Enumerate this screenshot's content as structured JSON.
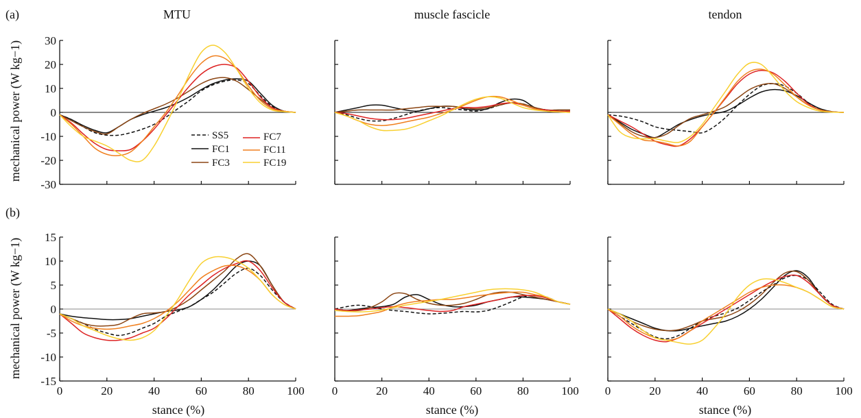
{
  "figure": {
    "panel_labels": [
      "(a)",
      "(b)"
    ],
    "column_titles": [
      "MTU",
      "muscle fascicle",
      "tendon"
    ],
    "ylabel": "mechanical power (W kg−1)",
    "xlabel": "stance (%)"
  },
  "legend": {
    "items": [
      {
        "name": "SS5",
        "color": "#111111",
        "dashed": true
      },
      {
        "name": "FC1",
        "color": "#111111",
        "dashed": false
      },
      {
        "name": "FC3",
        "color": "#8B4513",
        "dashed": false
      },
      {
        "name": "FC7",
        "color": "#DD2222",
        "dashed": false
      },
      {
        "name": "FC11",
        "color": "#F07F1E",
        "dashed": false
      },
      {
        "name": "FC19",
        "color": "#F8D030",
        "dashed": false
      }
    ]
  },
  "chart_data": [
    {
      "type": "line",
      "row": "a",
      "col": 0,
      "title": "MTU",
      "xlabel": "",
      "ylabel": "mechanical power (W kg−1)",
      "xlim": [
        0,
        100
      ],
      "ylim": [
        -30,
        30
      ],
      "yticks": [
        -30,
        -20,
        -10,
        0,
        10,
        20,
        30
      ],
      "xticks": [],
      "x": [
        0,
        5,
        10,
        15,
        20,
        25,
        30,
        35,
        40,
        45,
        50,
        55,
        60,
        65,
        70,
        75,
        80,
        85,
        90,
        95,
        100
      ],
      "series": [
        {
          "name": "SS5",
          "values": [
            -1,
            -3,
            -6,
            -8.5,
            -9.5,
            -9.5,
            -8.5,
            -7,
            -5,
            -2,
            1.5,
            5,
            9,
            11.5,
            13,
            13.5,
            12,
            7,
            2.5,
            0.5,
            0
          ]
        },
        {
          "name": "FC1",
          "values": [
            -1,
            -3,
            -5.5,
            -7.5,
            -8.5,
            -6,
            -3,
            -1,
            0.5,
            2,
            4,
            6.5,
            9.5,
            12,
            13.5,
            14,
            13,
            8,
            3,
            0.5,
            0
          ]
        },
        {
          "name": "FC3",
          "values": [
            -1,
            -3.5,
            -6,
            -8,
            -9,
            -6,
            -3,
            -0.5,
            1.5,
            3.5,
            6,
            9,
            12,
            14,
            14.5,
            13,
            9.5,
            5.5,
            2,
            0.5,
            0
          ]
        },
        {
          "name": "FC7",
          "values": [
            -1,
            -4.5,
            -9,
            -13,
            -15.5,
            -16,
            -15.5,
            -12,
            -7,
            -1,
            5,
            11,
            16,
            19,
            20,
            18.5,
            13,
            6.5,
            2,
            0.5,
            0
          ]
        },
        {
          "name": "FC11",
          "values": [
            -1,
            -5,
            -10,
            -15,
            -17.5,
            -18,
            -16.5,
            -12,
            -6,
            0,
            7,
            14.5,
            20.5,
            23.5,
            22.5,
            18,
            11,
            5,
            1.5,
            0.5,
            0
          ]
        },
        {
          "name": "FC19",
          "values": [
            -1,
            -6,
            -10,
            -12,
            -14,
            -17,
            -20,
            -20,
            -14,
            -5,
            5,
            16,
            25,
            28,
            25,
            18,
            10,
            4,
            1,
            0.3,
            0
          ]
        }
      ]
    },
    {
      "type": "line",
      "row": "a",
      "col": 1,
      "title": "muscle fascicle",
      "xlim": [
        0,
        100
      ],
      "ylim": [
        -30,
        30
      ],
      "yticks": [],
      "xticks": [],
      "x": [
        0,
        5,
        10,
        15,
        20,
        25,
        30,
        35,
        40,
        45,
        50,
        55,
        60,
        65,
        70,
        75,
        80,
        85,
        90,
        95,
        100
      ],
      "series": [
        {
          "name": "SS5",
          "values": [
            0,
            -1,
            -2.5,
            -3.5,
            -3.5,
            -2.5,
            -1,
            0.5,
            1.5,
            2,
            1.5,
            1,
            0.5,
            1.5,
            3,
            4,
            3.5,
            2,
            1,
            0.5,
            0.5
          ]
        },
        {
          "name": "FC1",
          "values": [
            0,
            1,
            2,
            3,
            3,
            2,
            1,
            0.5,
            1.5,
            2.5,
            2.5,
            1.5,
            1,
            1.5,
            4,
            5.5,
            5,
            2,
            1,
            1,
            1
          ]
        },
        {
          "name": "FC3",
          "values": [
            0,
            0.5,
            1,
            1,
            1,
            1,
            1.5,
            2,
            2.5,
            2.5,
            2.5,
            2,
            1.5,
            2,
            3,
            4,
            3.5,
            2,
            1,
            1,
            1
          ]
        },
        {
          "name": "FC7",
          "values": [
            0,
            -0.5,
            -1.5,
            -2.5,
            -3,
            -3,
            -2.5,
            -1.5,
            -0.5,
            0.5,
            1.5,
            2,
            2,
            2.5,
            3.5,
            4,
            3,
            1.5,
            1,
            0.5,
            0.5
          ]
        },
        {
          "name": "FC11",
          "values": [
            0,
            -1.5,
            -3.5,
            -5,
            -5.5,
            -5,
            -4,
            -3,
            -2,
            -0.5,
            1,
            3,
            5,
            6.5,
            6.5,
            5,
            3,
            1.5,
            0.5,
            0.2,
            0
          ]
        },
        {
          "name": "FC19",
          "values": [
            0,
            -1.5,
            -3.5,
            -6,
            -7.5,
            -7.5,
            -7,
            -5.5,
            -3.5,
            -1.5,
            1,
            3.5,
            5.5,
            6.5,
            6,
            4,
            2,
            1,
            0.5,
            0.2,
            0
          ]
        }
      ]
    },
    {
      "type": "line",
      "row": "a",
      "col": 2,
      "title": "tendon",
      "xlim": [
        0,
        100
      ],
      "ylim": [
        -30,
        30
      ],
      "yticks": [],
      "xticks": [],
      "x": [
        0,
        5,
        10,
        15,
        20,
        25,
        30,
        35,
        40,
        45,
        50,
        55,
        60,
        65,
        70,
        75,
        80,
        85,
        90,
        95,
        100
      ],
      "series": [
        {
          "name": "SS5",
          "values": [
            -1,
            -1.5,
            -2.5,
            -4,
            -6,
            -7,
            -7.5,
            -8,
            -8.5,
            -6,
            -2,
            3,
            7.5,
            11,
            12,
            11,
            8,
            4,
            1.5,
            0.3,
            0
          ]
        },
        {
          "name": "FC1",
          "values": [
            -1,
            -4,
            -7,
            -9,
            -10.5,
            -8,
            -5,
            -3,
            -1.5,
            -0.5,
            0.5,
            3,
            6,
            8.5,
            9.5,
            9,
            7,
            4,
            1.5,
            0.3,
            0
          ]
        },
        {
          "name": "FC3",
          "values": [
            -1,
            -4.5,
            -8,
            -10,
            -10.5,
            -9,
            -5.5,
            -2.5,
            -1,
            0.5,
            2.5,
            6,
            9.5,
            11.5,
            12,
            10,
            6.5,
            3,
            1,
            0.2,
            0
          ]
        },
        {
          "name": "FC7",
          "values": [
            -1,
            -3.5,
            -6,
            -9,
            -12,
            -13.5,
            -14,
            -11,
            -6,
            0,
            6,
            12,
            16,
            17.5,
            16.5,
            13,
            8,
            3.5,
            1,
            0.2,
            0
          ]
        },
        {
          "name": "FC11",
          "values": [
            -1,
            -5,
            -9,
            -11.5,
            -12,
            -13,
            -14,
            -12,
            -6,
            0,
            6.5,
            13,
            17,
            18,
            16,
            11.5,
            6.5,
            3,
            1,
            0.2,
            0
          ]
        },
        {
          "name": "FC19",
          "values": [
            -1,
            -8,
            -10.5,
            -11,
            -11,
            -12,
            -12.5,
            -10,
            -5,
            2,
            9,
            16,
            20.5,
            20,
            15,
            9,
            4.5,
            2,
            0.5,
            0.1,
            0
          ]
        }
      ]
    },
    {
      "type": "line",
      "row": "b",
      "col": 0,
      "title": "",
      "xlabel": "stance (%)",
      "ylabel": "mechanical power (W kg−1)",
      "xlim": [
        0,
        100
      ],
      "ylim": [
        -15,
        15
      ],
      "yticks": [
        -15,
        -10,
        -5,
        0,
        5,
        10,
        15
      ],
      "xticks": [
        0,
        20,
        40,
        60,
        80,
        100
      ],
      "x": [
        0,
        5,
        10,
        15,
        20,
        25,
        30,
        35,
        40,
        45,
        50,
        55,
        60,
        65,
        70,
        75,
        80,
        85,
        90,
        95,
        100
      ],
      "series": [
        {
          "name": "SS5",
          "values": [
            -1,
            -2,
            -3,
            -4.2,
            -5,
            -5.5,
            -5,
            -4,
            -3,
            -1.5,
            -0.5,
            0.5,
            2,
            3.5,
            5.5,
            7.5,
            8.5,
            7,
            4,
            1.5,
            0
          ]
        },
        {
          "name": "FC1",
          "values": [
            -1,
            -1.5,
            -1.8,
            -2,
            -2.2,
            -2.2,
            -2,
            -1.5,
            -1,
            -0.5,
            -0.2,
            0.5,
            2,
            4,
            6.5,
            9,
            10,
            9,
            5,
            1.5,
            0
          ]
        },
        {
          "name": "FC3",
          "values": [
            -1,
            -2,
            -3,
            -3.5,
            -3.5,
            -3.2,
            -2,
            -1,
            -0.8,
            -0.5,
            0.5,
            2,
            4,
            6,
            8,
            10.5,
            11.5,
            9,
            5,
            1.5,
            0
          ]
        },
        {
          "name": "FC7",
          "values": [
            -1,
            -3,
            -5,
            -6,
            -6.5,
            -6.5,
            -6,
            -5,
            -4,
            -2,
            0.5,
            3,
            5,
            7,
            8.5,
            9.5,
            10,
            8,
            4.5,
            1.5,
            0
          ]
        },
        {
          "name": "FC11",
          "values": [
            -1,
            -2.5,
            -3.5,
            -4,
            -4.2,
            -4,
            -3.5,
            -3,
            -2,
            -0.5,
            1.5,
            4,
            6.5,
            8,
            9,
            9,
            8,
            6,
            3,
            1,
            0
          ]
        },
        {
          "name": "FC19",
          "values": [
            -1,
            -2,
            -3.5,
            -4.5,
            -5.5,
            -6.2,
            -6.5,
            -6,
            -4.5,
            -1.5,
            2,
            6,
            9.5,
            10.8,
            10.8,
            10,
            8.5,
            6,
            3,
            1,
            0
          ]
        }
      ]
    },
    {
      "type": "line",
      "row": "b",
      "col": 1,
      "title": "",
      "xlabel": "stance (%)",
      "xlim": [
        0,
        100
      ],
      "ylim": [
        -15,
        15
      ],
      "yticks": [],
      "xticks": [
        0,
        20,
        40,
        60,
        80,
        100
      ],
      "x": [
        0,
        5,
        10,
        15,
        20,
        25,
        30,
        35,
        40,
        45,
        50,
        55,
        60,
        65,
        70,
        75,
        80,
        85,
        90,
        95,
        100
      ],
      "series": [
        {
          "name": "SS5",
          "values": [
            0,
            0.5,
            0.8,
            0.5,
            0,
            -0.3,
            -0.5,
            -0.8,
            -1,
            -0.9,
            -0.7,
            -0.5,
            -0.6,
            -0.3,
            0.5,
            1.5,
            2.5,
            2.8,
            2.5,
            1.5,
            1
          ]
        },
        {
          "name": "FC1",
          "values": [
            0,
            -0.3,
            0,
            0.3,
            0.5,
            1,
            2.5,
            3,
            2,
            1,
            0.5,
            0.5,
            0.8,
            1.5,
            2,
            2.5,
            2.5,
            2.3,
            2,
            1.5,
            1
          ]
        },
        {
          "name": "FC3",
          "values": [
            0,
            -0.3,
            -0.3,
            0.3,
            1.5,
            3.2,
            3.2,
            2,
            1.2,
            0.8,
            0.8,
            1.2,
            2,
            3,
            3.5,
            3.5,
            3,
            2.5,
            2,
            1.5,
            1
          ]
        },
        {
          "name": "FC7",
          "values": [
            0,
            -0.3,
            -0.2,
            0,
            0.3,
            0.5,
            0.3,
            0,
            -0.3,
            -0.5,
            -0.3,
            0.5,
            1,
            1.5,
            2,
            2.5,
            2.8,
            2.8,
            2.3,
            1.5,
            1
          ]
        },
        {
          "name": "FC11",
          "values": [
            -1.5,
            -1.5,
            -1.4,
            -1,
            -0.5,
            0.5,
            1.2,
            1.6,
            1.8,
            2,
            2,
            2.3,
            2.7,
            3,
            3.3,
            3.5,
            3.5,
            3,
            2.5,
            1.5,
            1
          ]
        },
        {
          "name": "FC19",
          "values": [
            -0.3,
            -0.5,
            -0.6,
            -0.5,
            -0.2,
            0.3,
            0.8,
            1.2,
            1.6,
            2,
            2.5,
            3,
            3.5,
            4,
            4.2,
            4.2,
            4,
            3.5,
            2.5,
            1.5,
            1
          ]
        }
      ]
    },
    {
      "type": "line",
      "row": "b",
      "col": 2,
      "title": "",
      "xlabel": "stance (%)",
      "xlim": [
        0,
        100
      ],
      "ylim": [
        -15,
        15
      ],
      "yticks": [],
      "xticks": [
        0,
        20,
        40,
        60,
        80,
        100
      ],
      "x": [
        0,
        5,
        10,
        15,
        20,
        25,
        30,
        35,
        40,
        45,
        50,
        55,
        60,
        65,
        70,
        75,
        80,
        85,
        90,
        95,
        100
      ],
      "series": [
        {
          "name": "SS5",
          "values": [
            0,
            -1.5,
            -3,
            -4.5,
            -5.8,
            -6.2,
            -5.5,
            -4,
            -2.5,
            -1.5,
            -0.8,
            0.2,
            1.8,
            3.5,
            5,
            6.5,
            7,
            6,
            3.5,
            1,
            0
          ]
        },
        {
          "name": "FC1",
          "values": [
            0,
            -1,
            -2,
            -3,
            -4,
            -4.5,
            -4.5,
            -4,
            -3.5,
            -3,
            -2.5,
            -1.5,
            0,
            2,
            4.5,
            7,
            8,
            6.5,
            3,
            0.8,
            0
          ]
        },
        {
          "name": "FC3",
          "values": [
            0,
            -1,
            -2.5,
            -3.5,
            -4.2,
            -4.5,
            -4.3,
            -3.5,
            -2.5,
            -2,
            -1.5,
            -0.5,
            1,
            3,
            5.5,
            7.5,
            7.8,
            6,
            3,
            0.8,
            0
          ]
        },
        {
          "name": "FC7",
          "values": [
            0,
            -2,
            -4,
            -5.5,
            -6.5,
            -6.8,
            -6,
            -4.5,
            -3,
            -1.5,
            0,
            1.5,
            3,
            4.5,
            5.8,
            6.8,
            7,
            5.5,
            3,
            0.8,
            0
          ]
        },
        {
          "name": "FC11",
          "values": [
            0,
            -1.5,
            -3.5,
            -5,
            -6,
            -6.5,
            -6,
            -4.5,
            -2.5,
            -1,
            0.5,
            2,
            3.5,
            4.5,
            5,
            5,
            4.5,
            3.5,
            2,
            0.5,
            0
          ]
        },
        {
          "name": "FC19",
          "values": [
            0,
            -1,
            -2.5,
            -4.5,
            -6,
            -6.5,
            -7,
            -7.3,
            -6.5,
            -4,
            -1,
            2.5,
            5,
            6.2,
            6.2,
            5.5,
            4.5,
            3.5,
            2,
            0.5,
            0
          ]
        }
      ]
    }
  ]
}
